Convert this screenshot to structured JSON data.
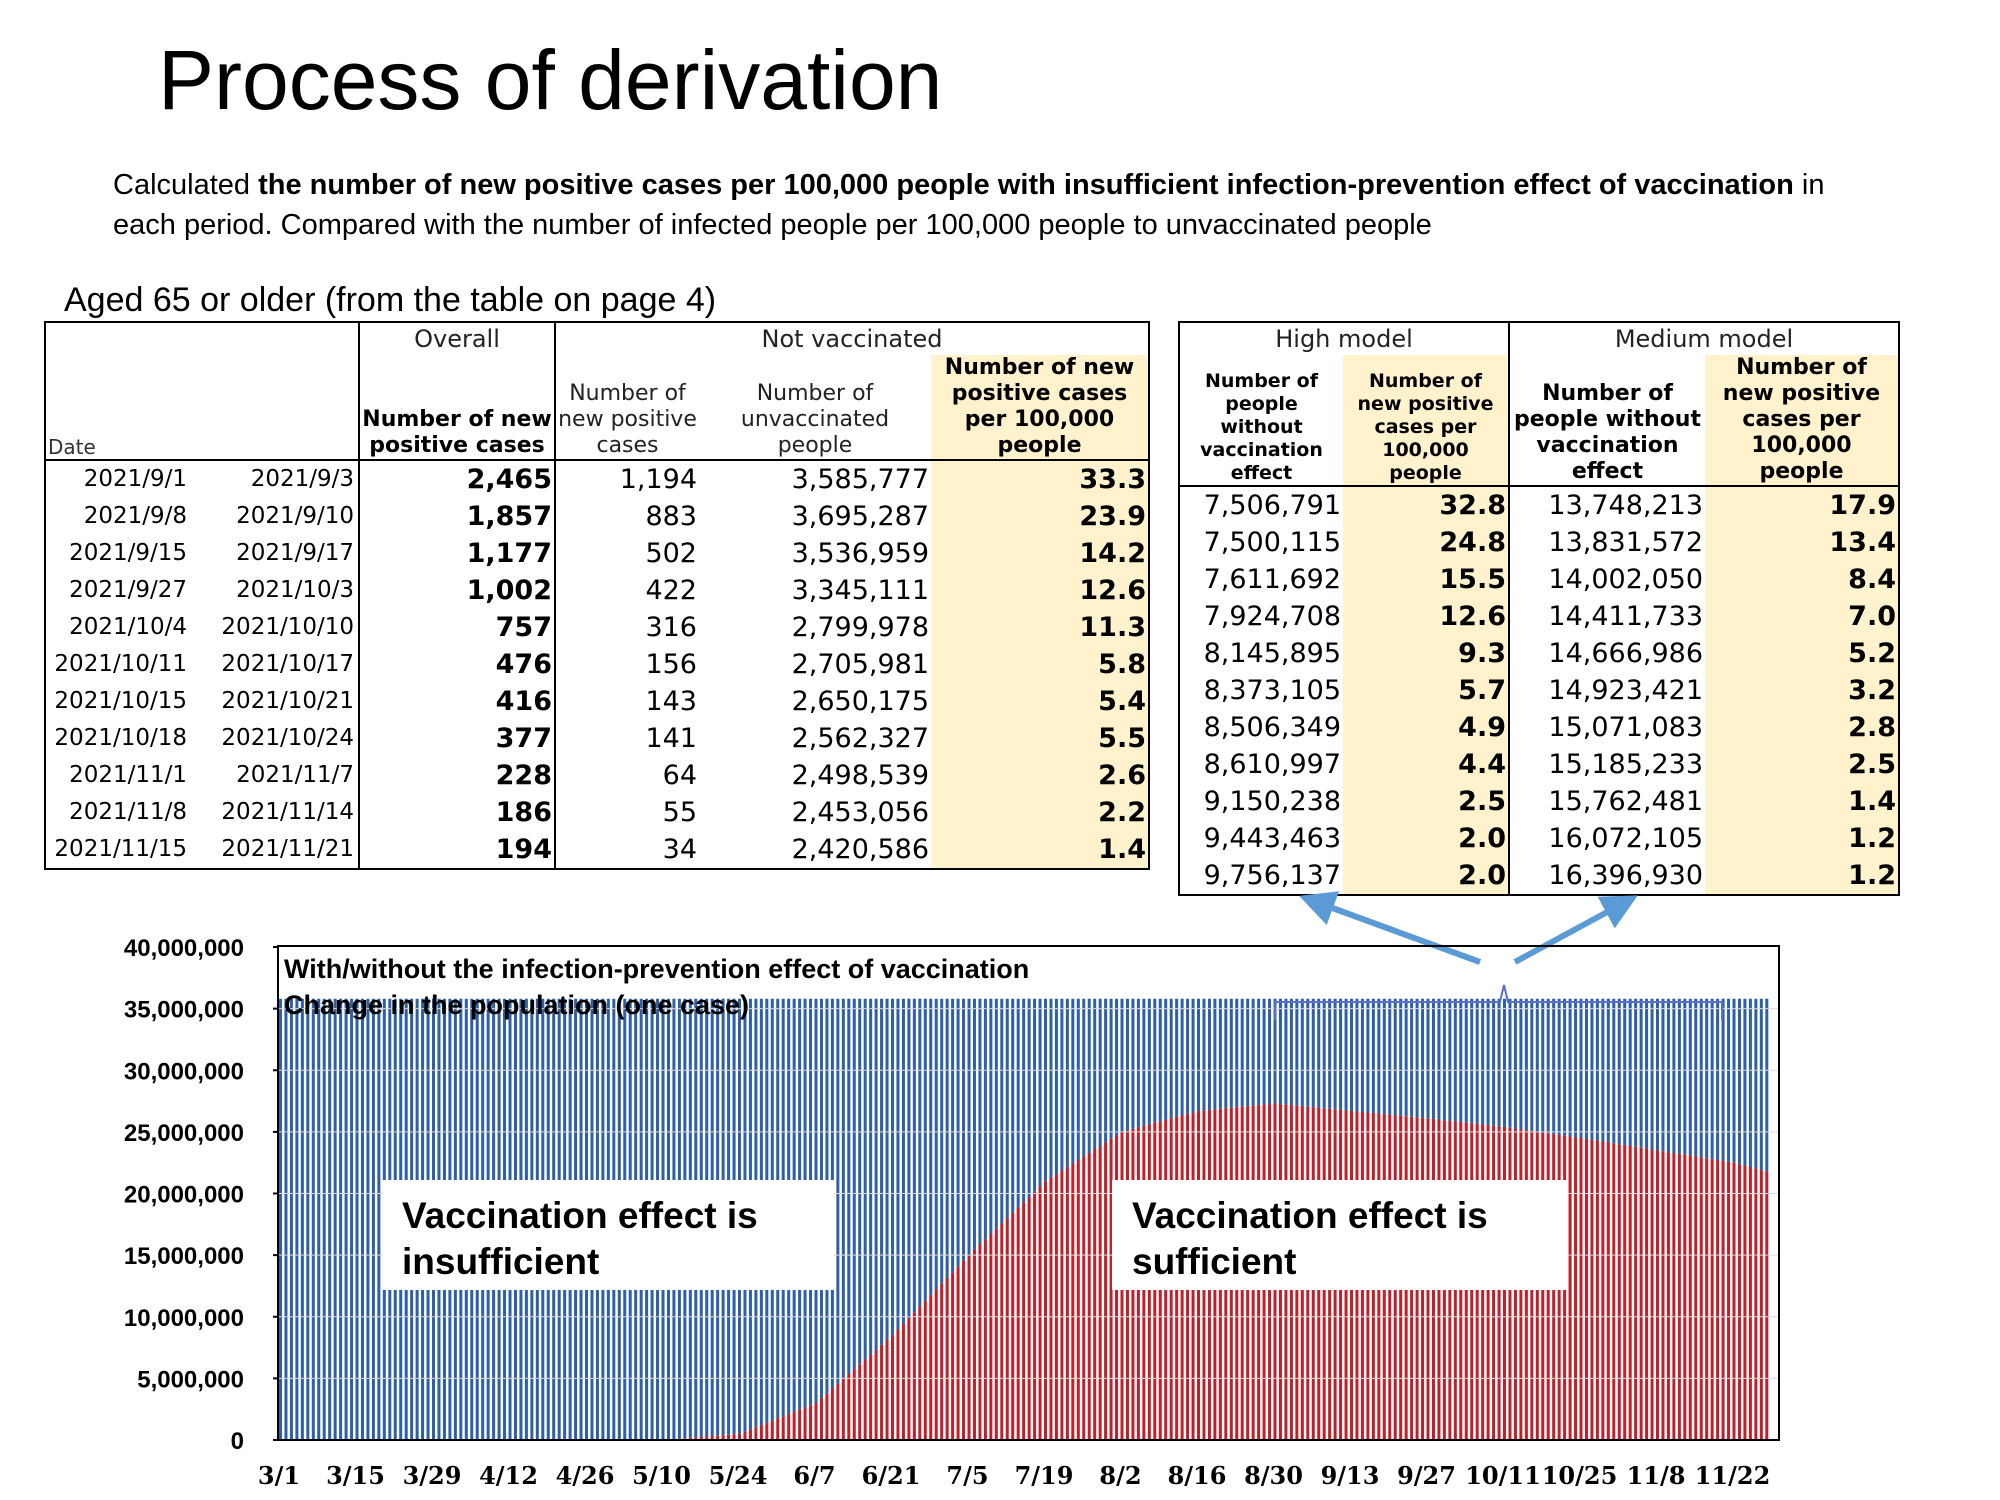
{
  "title": "Process of derivation",
  "description": {
    "p1": "Calculated ",
    "b1": "the number of new positive cases per 100,000 people with insufficient infection-prevention effect of vaccination",
    "p2": " in each period. Compared with the number of infected people per 100,000 people to unvaccinated people"
  },
  "subtitle": "Aged 65 or older (from the table on page 4)",
  "table1": {
    "group_overall": "Overall",
    "group_notvax": "Not vaccinated",
    "h_date": "Date",
    "h_overall": "Number of new positive cases",
    "h_nv_cases": "Number of new positive cases",
    "h_nv_people": "Number of unvaccinated people",
    "h_nv_per": "Number of new positive cases per 100,000 people",
    "rows": [
      {
        "start": "2021/9/1",
        "end": "2021/9/3",
        "overall": "2,465",
        "cases": "1,194",
        "people": "3,585,777",
        "per100k": "33.3"
      },
      {
        "start": "2021/9/8",
        "end": "2021/9/10",
        "overall": "1,857",
        "cases": "883",
        "people": "3,695,287",
        "per100k": "23.9"
      },
      {
        "start": "2021/9/15",
        "end": "2021/9/17",
        "overall": "1,177",
        "cases": "502",
        "people": "3,536,959",
        "per100k": "14.2"
      },
      {
        "start": "2021/9/27",
        "end": "2021/10/3",
        "overall": "1,002",
        "cases": "422",
        "people": "3,345,111",
        "per100k": "12.6"
      },
      {
        "start": "2021/10/4",
        "end": "2021/10/10",
        "overall": "757",
        "cases": "316",
        "people": "2,799,978",
        "per100k": "11.3"
      },
      {
        "start": "2021/10/11",
        "end": "2021/10/17",
        "overall": "476",
        "cases": "156",
        "people": "2,705,981",
        "per100k": "5.8"
      },
      {
        "start": "2021/10/15",
        "end": "2021/10/21",
        "overall": "416",
        "cases": "143",
        "people": "2,650,175",
        "per100k": "5.4"
      },
      {
        "start": "2021/10/18",
        "end": "2021/10/24",
        "overall": "377",
        "cases": "141",
        "people": "2,562,327",
        "per100k": "5.5"
      },
      {
        "start": "2021/11/1",
        "end": "2021/11/7",
        "overall": "228",
        "cases": "64",
        "people": "2,498,539",
        "per100k": "2.6"
      },
      {
        "start": "2021/11/8",
        "end": "2021/11/14",
        "overall": "186",
        "cases": "55",
        "people": "2,453,056",
        "per100k": "2.2"
      },
      {
        "start": "2021/11/15",
        "end": "2021/11/21",
        "overall": "194",
        "cases": "34",
        "people": "2,420,586",
        "per100k": "1.4"
      }
    ]
  },
  "table2": {
    "group_high": "High model",
    "group_medium": "Medium model",
    "h_high_people": "Number of people without vaccination effect",
    "h_high_per": "Number of new positive cases per 100,000 people",
    "h_med_people": "Number of people without vaccination effect",
    "h_med_per": "Number of new positive cases per 100,000 people",
    "rows": [
      {
        "high_people": "7,506,791",
        "high_per": "32.8",
        "med_people": "13,748,213",
        "med_per": "17.9"
      },
      {
        "high_people": "7,500,115",
        "high_per": "24.8",
        "med_people": "13,831,572",
        "med_per": "13.4"
      },
      {
        "high_people": "7,611,692",
        "high_per": "15.5",
        "med_people": "14,002,050",
        "med_per": "8.4"
      },
      {
        "high_people": "7,924,708",
        "high_per": "12.6",
        "med_people": "14,411,733",
        "med_per": "7.0"
      },
      {
        "high_people": "8,145,895",
        "high_per": "9.3",
        "med_people": "14,666,986",
        "med_per": "5.2"
      },
      {
        "high_people": "8,373,105",
        "high_per": "5.7",
        "med_people": "14,923,421",
        "med_per": "3.2"
      },
      {
        "high_people": "8,506,349",
        "high_per": "4.9",
        "med_people": "15,071,083",
        "med_per": "2.8"
      },
      {
        "high_people": "8,610,997",
        "high_per": "4.4",
        "med_people": "15,185,233",
        "med_per": "2.5"
      },
      {
        "high_people": "9,150,238",
        "high_per": "2.5",
        "med_people": "15,762,481",
        "med_per": "1.4"
      },
      {
        "high_people": "9,443,463",
        "high_per": "2.0",
        "med_people": "16,072,105",
        "med_per": "1.2"
      },
      {
        "high_people": "9,756,137",
        "high_per": "2.0",
        "med_people": "16,396,930",
        "med_per": "1.2"
      }
    ]
  },
  "chart_data": {
    "type": "bar",
    "title": "With/without the infection-prevention effect of vaccination",
    "subtitle": "Change in the population (one case)",
    "ylim": [
      0,
      40000000
    ],
    "yticks": [
      0,
      5000000,
      10000000,
      15000000,
      20000000,
      25000000,
      30000000,
      35000000,
      40000000
    ],
    "ytick_labels": [
      "0",
      "5,000,000",
      "10,000,000",
      "15,000,000",
      "20,000,000",
      "25,000,000",
      "30,000,000",
      "35,000,000",
      "40,000,000"
    ],
    "x_tick_labels": [
      "3/1",
      "3/15",
      "3/29",
      "4/12",
      "4/26",
      "5/10",
      "5/24",
      "6/7",
      "6/21",
      "7/5",
      "7/19",
      "8/2",
      "8/16",
      "8/30",
      "9/13",
      "9/27",
      "10/11",
      "10/25",
      "11/8",
      "11/22"
    ],
    "x_start": "3/1",
    "x_end": "11/28",
    "total_population": 35800000,
    "series": [
      {
        "name": "Vaccination effect is insufficient",
        "color": "#2e5fa8"
      },
      {
        "name": "Vaccination effect is sufficient",
        "color": "#c0202a",
        "points": [
          [
            "3/1",
            0
          ],
          [
            "5/10",
            0
          ],
          [
            "5/24",
            500000
          ],
          [
            "6/7",
            3000000
          ],
          [
            "6/21",
            8500000
          ],
          [
            "7/5",
            15000000
          ],
          [
            "7/19",
            21000000
          ],
          [
            "8/2",
            25000000
          ],
          [
            "8/16",
            26700000
          ],
          [
            "8/30",
            27300000
          ],
          [
            "9/13",
            26700000
          ],
          [
            "9/27",
            26100000
          ],
          [
            "10/11",
            25400000
          ],
          [
            "10/25",
            24500000
          ],
          [
            "11/8",
            23500000
          ],
          [
            "11/22",
            22500000
          ],
          [
            "11/28",
            21800000
          ]
        ]
      }
    ],
    "annotations": [
      "Vaccination effect is insufficient",
      "Vaccination effect is sufficient"
    ],
    "label_insufficient": "Vaccination effect is insufficient",
    "label_sufficient": "Vaccination effect is sufficient",
    "grid": true
  }
}
